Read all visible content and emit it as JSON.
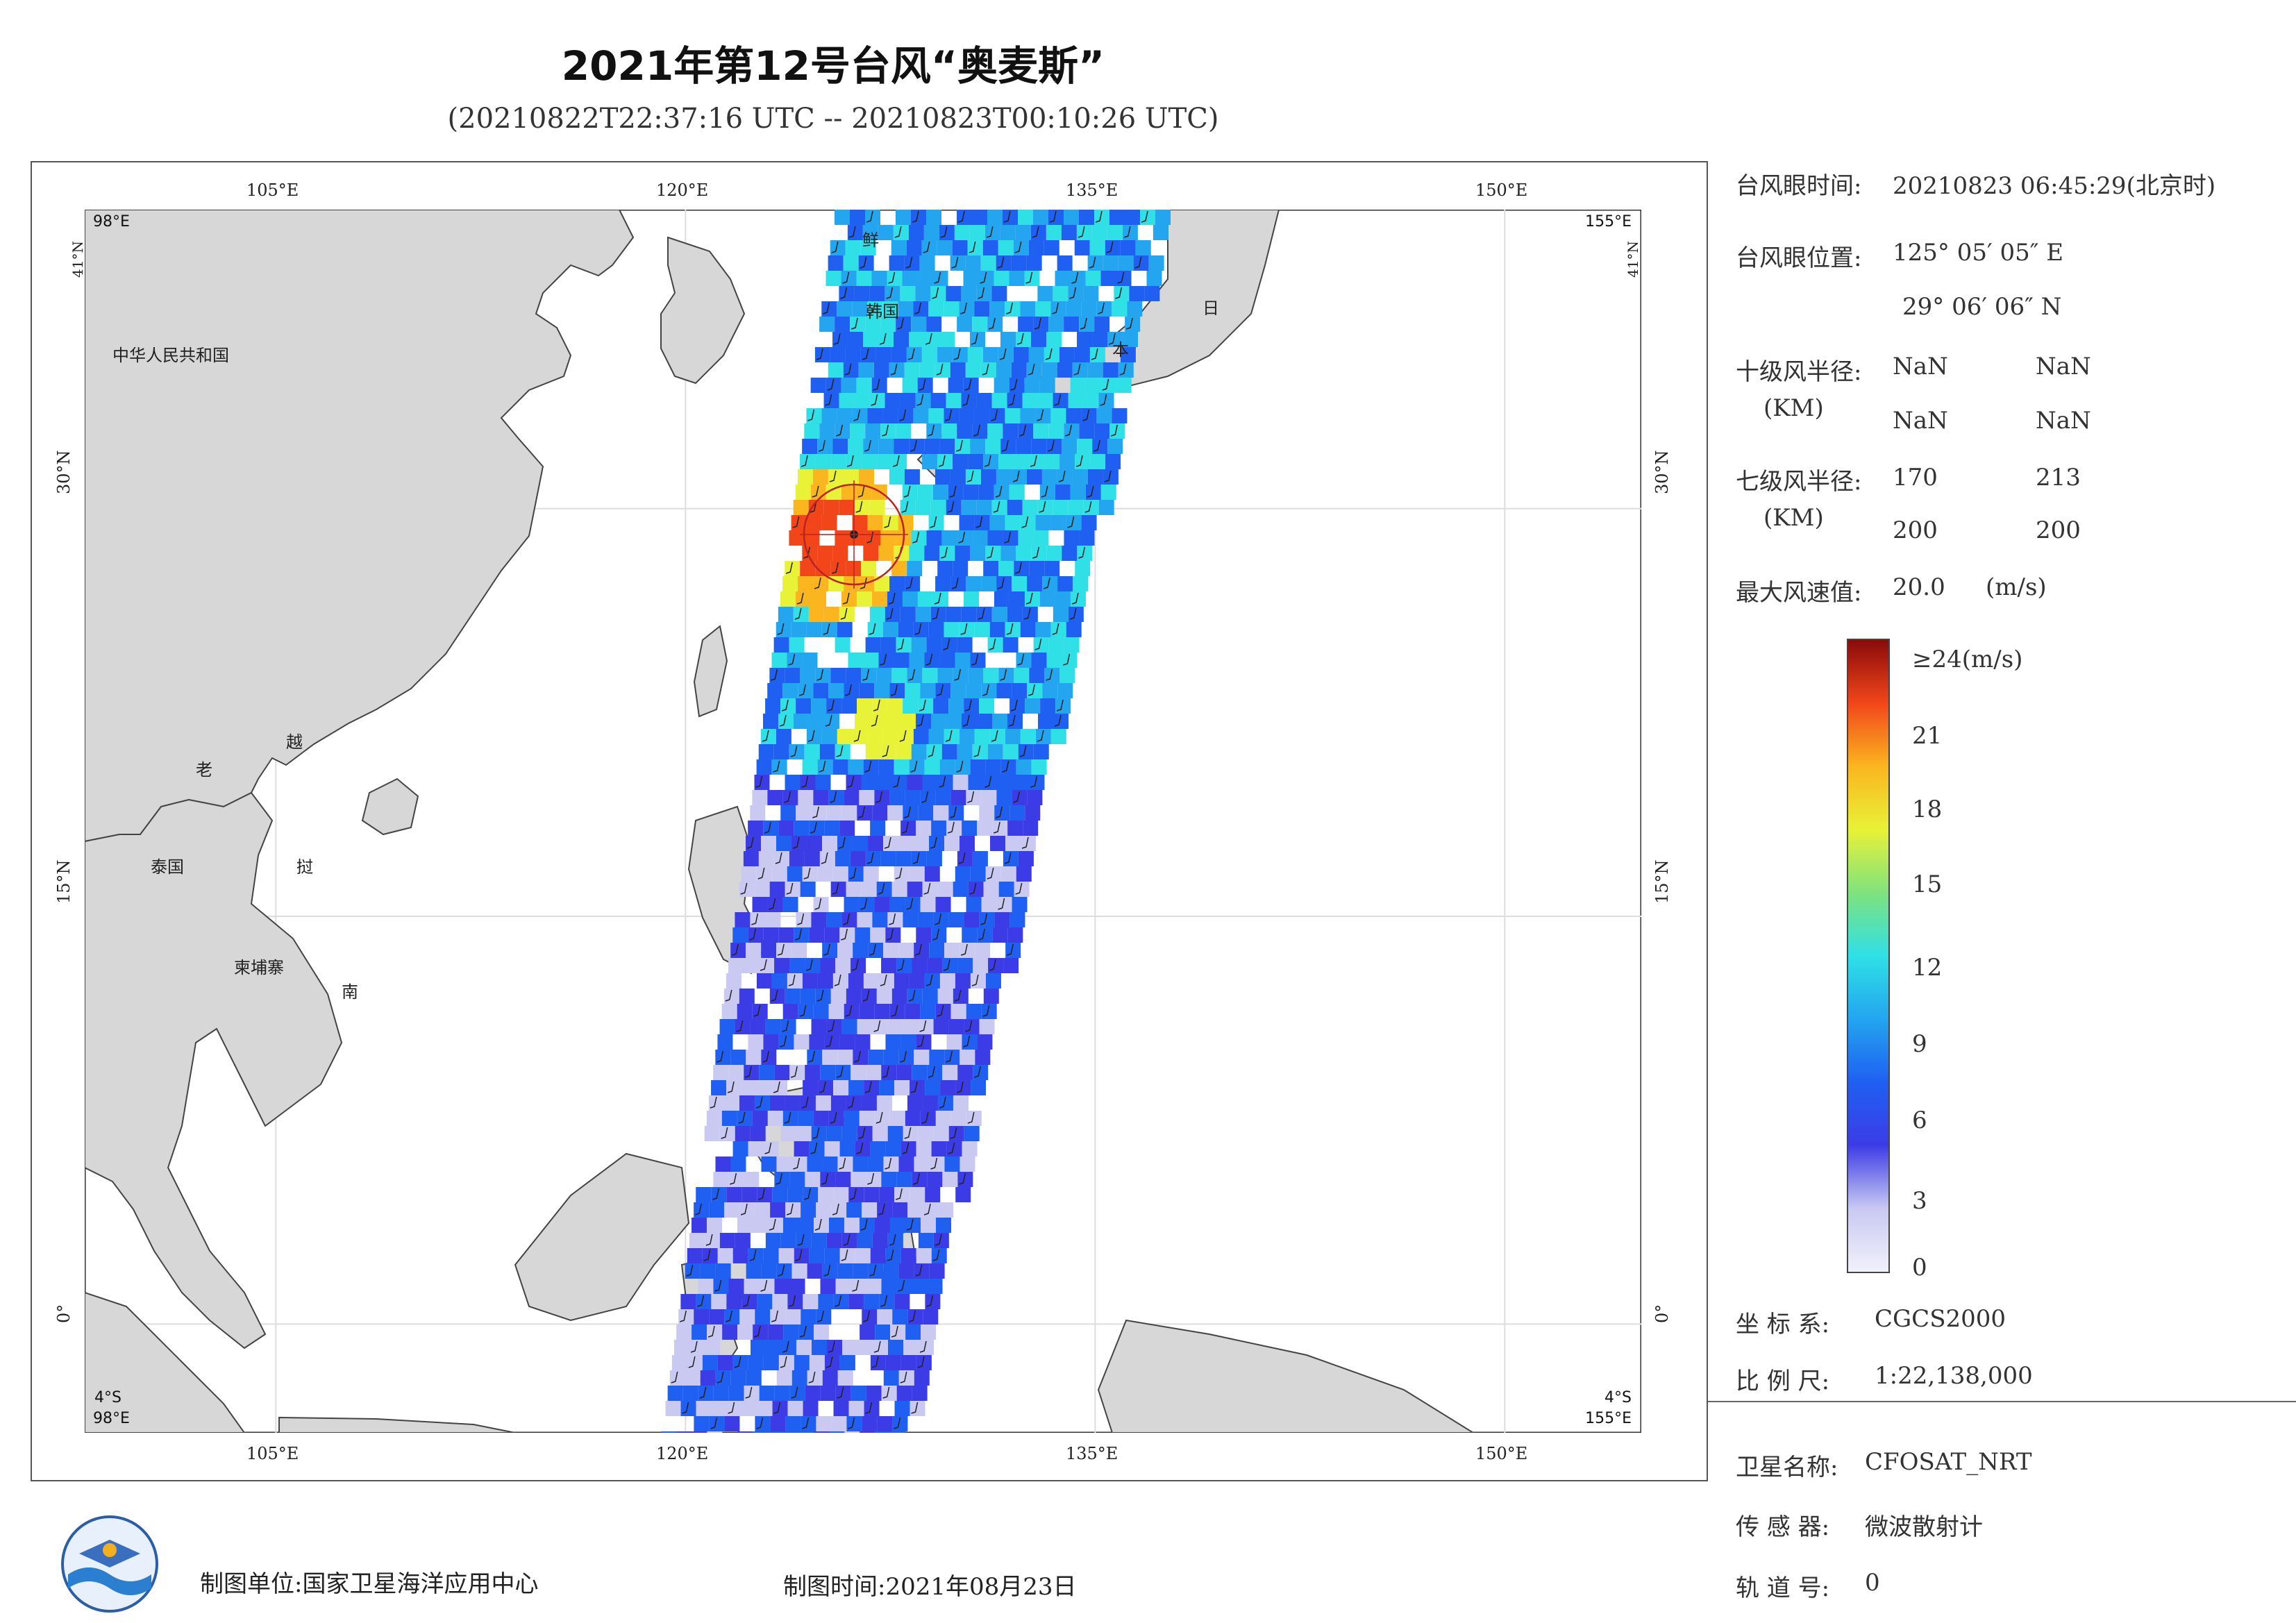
{
  "header": {
    "title": "2021年第12号台风“奥麦斯”",
    "subtitle": "(20210822T22:37:16 UTC -- 20210823T00:10:26 UTC)"
  },
  "map": {
    "lon_range": [
      98,
      155
    ],
    "lat_range": [
      -4,
      41
    ],
    "lon_ticks": [
      "105°E",
      "120°E",
      "135°E",
      "150°E"
    ],
    "lat_ticks": [
      "30°N",
      "15°N",
      "0°"
    ],
    "corner_labels": {
      "tl_lon": "98°E",
      "tl_lat": "41°N",
      "tr_lon": "155°E",
      "tr_lat": "41°N",
      "bl_lon": "98°E",
      "bl_lat": "4°S",
      "br_lon": "155°E",
      "br_lat": "4°S"
    },
    "place_labels": [
      "中华人民共和国",
      "鲜",
      "韩国",
      "日",
      "本",
      "老",
      "越",
      "泰国",
      "挝",
      "柬埔寨",
      "南"
    ],
    "typhoon_center": {
      "lon": 125.085,
      "lat": 29.1
    }
  },
  "info": {
    "eye_time_label": "台风眼时间:",
    "eye_time_value": "20210823 06:45:29(北京时)",
    "eye_pos_label": "台风眼位置:",
    "eye_lon": "125° 05′ 05″ E",
    "eye_lat": "29° 06′ 06″ N",
    "r10_label": "十级风半径:",
    "r10_unit": "(KM)",
    "r10_values": [
      "NaN",
      "NaN",
      "NaN",
      "NaN"
    ],
    "r7_label": "七级风半径:",
    "r7_unit": "(KM)",
    "r7_values": [
      "170",
      "213",
      "200",
      "200"
    ],
    "max_wind_label": "最大风速值:",
    "max_wind_value": "20.0",
    "max_wind_unit": "(m/s)",
    "coord_label": "坐 标 系:",
    "coord_value": "CGCS2000",
    "scale_label": "比 例 尺:",
    "scale_value": "1:22,138,000",
    "satellite_label": "卫星名称:",
    "satellite_value": "CFOSAT_NRT",
    "sensor_label": "传 感 器:",
    "sensor_value": "微波散射计",
    "orbit_label": "轨 道 号:",
    "orbit_value": "0"
  },
  "colorbar": {
    "max_label": "≥24(m/s)",
    "ticks": [
      "21",
      "18",
      "15",
      "12",
      "9",
      "6",
      "3",
      "0"
    ],
    "colors": [
      "#f1f1fb",
      "#c9c9f2",
      "#3c3ce6",
      "#1f5ff2",
      "#24a5f0",
      "#2fe0e6",
      "#7fe27e",
      "#e8f236",
      "#fbb51f",
      "#f2461a",
      "#8a0a0a"
    ]
  },
  "footer": {
    "unit": "制图单位:国家卫星海洋应用中心",
    "time": "制图时间:2021年08月23日"
  }
}
